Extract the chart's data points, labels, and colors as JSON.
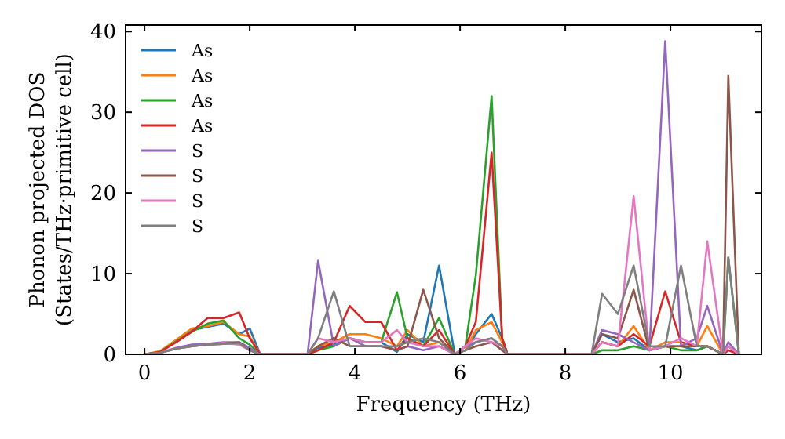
{
  "chart_data": {
    "type": "line",
    "xlabel": "Frequency (THz)",
    "ylabel": "Phonon projected DOS\n(States/THz·primitive cell)",
    "x": [
      0,
      0.3,
      0.6,
      0.9,
      1.2,
      1.5,
      1.8,
      2.0,
      2.2,
      3.1,
      3.3,
      3.6,
      3.9,
      4.2,
      4.5,
      4.8,
      5.0,
      5.3,
      5.6,
      5.9,
      6.1,
      6.3,
      6.6,
      6.8,
      6.9,
      8.5,
      8.7,
      9.0,
      9.3,
      9.6,
      9.9,
      10.2,
      10.5,
      10.7,
      11.0,
      11.1,
      11.3
    ],
    "xlim": [
      -0.36,
      11.73
    ],
    "xticks": [
      0,
      2,
      4,
      6,
      8,
      10
    ],
    "ylim": [
      0,
      40.8
    ],
    "yticks": [
      0,
      10,
      20,
      30,
      40
    ],
    "grid": false,
    "legend": "top left",
    "marker": "none",
    "line_style": "solid",
    "series": [
      {
        "name": "As",
        "color": "#1f77b4",
        "values": [
          null,
          null,
          1.5,
          3.0,
          3.4,
          3.8,
          2.5,
          3.2,
          0,
          0,
          0.8,
          1.2,
          2.0,
          1.5,
          1.5,
          0.3,
          2.5,
          1.5,
          11,
          0,
          0.5,
          2.5,
          5,
          2,
          0,
          0,
          2.5,
          1.5,
          2,
          0.5,
          1,
          1,
          0.5,
          1,
          null,
          null,
          null
        ]
      },
      {
        "name": "As",
        "color": "#ff7f0e",
        "values": [
          0,
          0.4,
          1.8,
          3.2,
          3.5,
          4.0,
          2.5,
          2.2,
          0,
          0,
          1,
          1.5,
          2.5,
          2.5,
          2,
          1,
          3,
          1,
          1.5,
          0,
          0.5,
          3,
          4,
          1.5,
          0,
          0,
          1.5,
          1,
          3.5,
          0.5,
          1.5,
          1.5,
          1,
          3.5,
          0,
          1,
          0
        ]
      },
      {
        "name": "As",
        "color": "#2ca02c",
        "values": [
          0,
          0.3,
          1.6,
          2.8,
          3.8,
          4.2,
          2.0,
          1.2,
          0,
          0,
          0.5,
          1,
          2,
          1.5,
          1.5,
          7.7,
          2,
          1,
          4.5,
          0,
          1,
          9.8,
          32,
          2,
          0,
          0,
          0.5,
          0.5,
          1,
          0.5,
          1,
          0.5,
          0.5,
          1,
          0,
          12,
          0
        ]
      },
      {
        "name": "As",
        "color": "#d62728",
        "values": [
          0,
          0.3,
          1.5,
          2.8,
          4.5,
          4.5,
          5.2,
          2,
          0,
          0,
          0.5,
          1.5,
          6,
          4,
          4,
          0.5,
          2,
          1,
          3,
          0,
          1,
          4,
          25,
          2,
          0,
          0,
          1.5,
          1,
          2.5,
          1,
          7.8,
          1.5,
          1,
          1,
          0,
          0.5,
          0
        ]
      },
      {
        "name": "S",
        "color": "#9467bd",
        "values": [
          0,
          0.2,
          0.8,
          1.2,
          1.3,
          1.5,
          1.5,
          0.8,
          0,
          0,
          11.6,
          1,
          2,
          1,
          1,
          0.5,
          1,
          0.5,
          1,
          0,
          1,
          1.5,
          2,
          1,
          0,
          0,
          3,
          2.5,
          1.5,
          0.5,
          38.8,
          1,
          2,
          6,
          0,
          1.5,
          0
        ]
      },
      {
        "name": "S",
        "color": "#8c564b",
        "values": [
          0,
          0.2,
          0.7,
          1.0,
          1.2,
          1.3,
          1.5,
          0.5,
          0,
          0,
          1,
          2,
          1,
          1,
          1,
          0.5,
          1,
          8,
          2,
          0,
          0.5,
          1,
          1.5,
          0.5,
          0,
          0,
          2.5,
          2,
          8,
          0.5,
          1,
          1,
          1,
          1,
          0,
          34.5,
          0
        ]
      },
      {
        "name": "S",
        "color": "#e377c2",
        "values": [
          0,
          0.2,
          0.7,
          1.0,
          1.2,
          1.4,
          1.2,
          0.5,
          0,
          0,
          2,
          1.5,
          2,
          1.5,
          1.5,
          3,
          1.5,
          1,
          1,
          0,
          1,
          2,
          1.5,
          1,
          0,
          0,
          1.5,
          1,
          19.6,
          0.5,
          1,
          2,
          1,
          14,
          0,
          1,
          0
        ]
      },
      {
        "name": "S",
        "color": "#7f7f7f",
        "values": [
          0,
          0.2,
          0.7,
          1.0,
          1.2,
          1.3,
          1.4,
          0.5,
          0,
          0,
          2,
          7.8,
          1,
          1,
          1,
          1,
          1.5,
          2,
          1.5,
          0,
          0.5,
          1.5,
          2,
          1,
          0,
          0,
          7.5,
          5,
          11,
          1,
          1,
          11,
          1,
          1,
          0,
          12,
          0
        ]
      }
    ]
  }
}
